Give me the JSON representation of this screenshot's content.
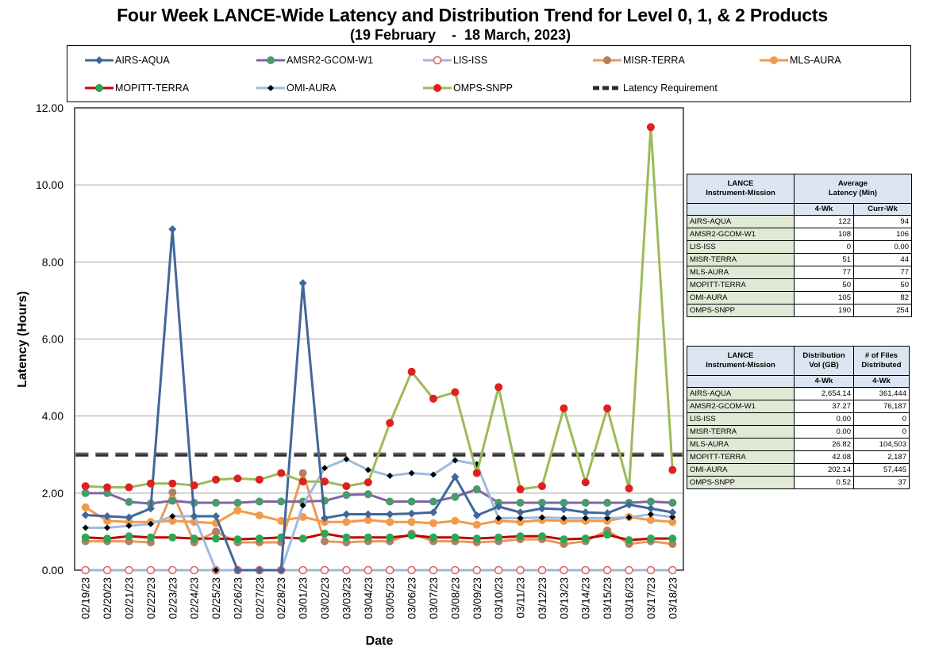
{
  "title": "Four Week LANCE-Wide Latency and Distribution Trend for Level 0, 1, & 2 Products",
  "subtitle": "(19 February    -  18 March, 2023)",
  "chart_data": {
    "type": "line",
    "xlabel": "Date",
    "ylabel": "Latency (Hours)",
    "ylim": [
      0,
      12
    ],
    "yticks": [
      "0.00",
      "2.00",
      "4.00",
      "6.00",
      "8.00",
      "10.00",
      "12.00"
    ],
    "grid": "horizontal",
    "legend_position": "top",
    "categories": [
      "02/19/23",
      "02/20/23",
      "02/21/23",
      "02/22/23",
      "02/23/23",
      "02/24/23",
      "02/25/23",
      "02/26/23",
      "02/27/23",
      "02/28/23",
      "03/01/23",
      "03/02/23",
      "03/03/23",
      "03/04/23",
      "03/05/23",
      "03/06/23",
      "03/07/23",
      "03/08/23",
      "03/09/23",
      "03/10/23",
      "03/11/23",
      "03/12/23",
      "03/13/23",
      "03/14/23",
      "03/15/23",
      "03/16/23",
      "03/17/23",
      "03/18/23"
    ],
    "series": [
      {
        "name": "AIRS-AQUA",
        "color": "#41679a",
        "marker": "diamond",
        "markerColor": "#41679a",
        "values": [
          1.43,
          1.4,
          1.37,
          1.6,
          8.85,
          1.4,
          1.4,
          0.0,
          0.0,
          0.0,
          7.45,
          1.35,
          1.45,
          1.45,
          1.45,
          1.47,
          1.5,
          2.42,
          1.42,
          1.65,
          1.5,
          1.6,
          1.58,
          1.5,
          1.48,
          1.7,
          1.6,
          1.5
        ]
      },
      {
        "name": "AMSR2-GCOM-W1",
        "color": "#8064a2",
        "marker": "circle",
        "markerColor": "#4a9a6e",
        "values": [
          2.0,
          2.0,
          1.77,
          1.73,
          1.8,
          1.75,
          1.75,
          1.75,
          1.78,
          1.78,
          1.78,
          1.8,
          1.95,
          1.97,
          1.78,
          1.78,
          1.78,
          1.9,
          2.1,
          1.75,
          1.75,
          1.75,
          1.75,
          1.75,
          1.75,
          1.75,
          1.78,
          1.75
        ]
      },
      {
        "name": "LIS-ISS",
        "color": "#9fb7d9",
        "marker": "hollow-circle",
        "markerColor": "#e06060",
        "values": [
          0.0,
          0.0,
          0.0,
          0.0,
          0.0,
          0.0,
          0.0,
          0.0,
          0.0,
          0.0,
          0.0,
          0.0,
          0.0,
          0.0,
          0.0,
          0.0,
          0.0,
          0.0,
          0.0,
          0.0,
          0.0,
          0.0,
          0.0,
          0.0,
          0.0,
          0.0,
          0.0,
          0.0
        ]
      },
      {
        "name": "MISR-TERRA",
        "color": "#e89a58",
        "marker": "circle",
        "markerColor": "#b08060",
        "values": [
          0.75,
          0.75,
          0.75,
          0.72,
          2.02,
          0.72,
          1.0,
          0.72,
          0.72,
          0.72,
          2.52,
          0.75,
          0.72,
          0.75,
          0.75,
          0.95,
          0.75,
          0.75,
          0.72,
          0.75,
          0.8,
          0.8,
          0.68,
          0.75,
          1.03,
          0.68,
          0.75,
          0.68
        ]
      },
      {
        "name": "MLS-AURA",
        "color": "#f29a4a",
        "marker": "circle",
        "markerColor": "#f29a4a",
        "values": [
          1.63,
          1.28,
          1.25,
          1.25,
          1.28,
          1.25,
          1.22,
          1.55,
          1.42,
          1.28,
          1.38,
          1.25,
          1.25,
          1.3,
          1.25,
          1.25,
          1.22,
          1.28,
          1.18,
          1.28,
          1.25,
          1.3,
          1.28,
          1.28,
          1.28,
          1.38,
          1.3,
          1.25
        ]
      },
      {
        "name": "MOPITT-TERRA",
        "color": "#c00000",
        "marker": "circle",
        "markerColor": "#2aa855",
        "values": [
          0.85,
          0.82,
          0.88,
          0.85,
          0.85,
          0.82,
          0.82,
          0.8,
          0.82,
          0.85,
          0.82,
          0.95,
          0.85,
          0.85,
          0.85,
          0.9,
          0.85,
          0.85,
          0.82,
          0.85,
          0.88,
          0.88,
          0.8,
          0.82,
          0.92,
          0.78,
          0.82,
          0.82
        ]
      },
      {
        "name": "OMI-AURA",
        "color": "#9dbbe0",
        "marker": "small-diamond",
        "markerColor": "#000000",
        "values": [
          1.1,
          1.1,
          1.15,
          1.2,
          1.4,
          1.4,
          0.0,
          0.0,
          0.0,
          0.0,
          1.68,
          2.65,
          2.88,
          2.6,
          2.45,
          2.52,
          2.48,
          2.85,
          2.75,
          1.35,
          1.35,
          1.37,
          1.35,
          1.35,
          1.35,
          1.37,
          1.45,
          1.38
        ]
      },
      {
        "name": "OMPS-SNPP",
        "color": "#9bbb59",
        "marker": "circle",
        "markerColor": "#e02020",
        "values": [
          2.18,
          2.15,
          2.15,
          2.25,
          2.25,
          2.2,
          2.35,
          2.38,
          2.35,
          2.52,
          2.3,
          2.3,
          2.18,
          2.28,
          3.82,
          5.15,
          4.45,
          4.62,
          2.52,
          4.75,
          2.1,
          2.18,
          4.2,
          2.28,
          4.2,
          2.12,
          11.5,
          2.6
        ]
      },
      {
        "name": "Latency Requirement",
        "color": "#1a1a1a",
        "marker": "none",
        "dashed": true,
        "values": [
          3,
          3,
          3,
          3,
          3,
          3,
          3,
          3,
          3,
          3,
          3,
          3,
          3,
          3,
          3,
          3,
          3,
          3,
          3,
          3,
          3,
          3,
          3,
          3,
          3,
          3,
          3,
          3
        ]
      }
    ]
  },
  "table1": {
    "head_mission": "LANCE\nInstrument-Mission",
    "head_avg": "Average\nLatency (Min)",
    "sub_4wk": "4-Wk",
    "sub_curr": "Curr-Wk",
    "rows": [
      {
        "name": "AIRS-AQUA",
        "a": "122",
        "b": "94"
      },
      {
        "name": "AMSR2-GCOM-W1",
        "a": "108",
        "b": "106"
      },
      {
        "name": "LIS-ISS",
        "a": "0",
        "b": "0.00"
      },
      {
        "name": "MISR-TERRA",
        "a": "51",
        "b": "44"
      },
      {
        "name": "MLS-AURA",
        "a": "77",
        "b": "77"
      },
      {
        "name": "MOPITT-TERRA",
        "a": "50",
        "b": "50"
      },
      {
        "name": "OMI-AURA",
        "a": "105",
        "b": "82"
      },
      {
        "name": "OMPS-SNPP",
        "a": "190",
        "b": "254"
      }
    ]
  },
  "table2": {
    "head_mission": "LANCE\nInstrument-Mission",
    "head_vol": "Distribution\nVol (GB)",
    "head_files": "# of Files\nDistributed",
    "sub_vol": "4-Wk",
    "sub_files": "4-Wk",
    "rows": [
      {
        "name": "AIRS-AQUA",
        "a": "2,654.14",
        "b": "361,444"
      },
      {
        "name": "AMSR2-GCOM-W1",
        "a": "37.27",
        "b": "76,187"
      },
      {
        "name": "LIS-ISS",
        "a": "0.00",
        "b": "0"
      },
      {
        "name": "MISR-TERRA",
        "a": "0.00",
        "b": "0"
      },
      {
        "name": "MLS-AURA",
        "a": "26.82",
        "b": "104,503"
      },
      {
        "name": "MOPITT-TERRA",
        "a": "42.08",
        "b": "2,187"
      },
      {
        "name": "OMI-AURA",
        "a": "202.14",
        "b": "57,445"
      },
      {
        "name": "OMPS-SNPP",
        "a": "0.52",
        "b": "37"
      }
    ]
  }
}
